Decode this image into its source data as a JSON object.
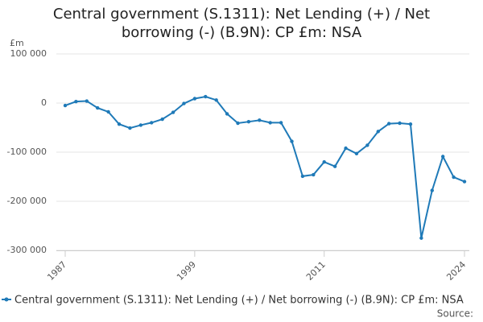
{
  "chart_data": {
    "type": "line",
    "title": "Central government (S.1311): Net Lending (+) / Net borrowing (-) (B.9N): CP £m: NSA",
    "ylabel": "£m",
    "source": "Source:",
    "x": [
      1987,
      1988,
      1989,
      1990,
      1991,
      1992,
      1993,
      1994,
      1995,
      1996,
      1997,
      1998,
      1999,
      2000,
      2001,
      2002,
      2003,
      2004,
      2005,
      2006,
      2007,
      2008,
      2009,
      2010,
      2011,
      2012,
      2013,
      2014,
      2015,
      2016,
      2017,
      2018,
      2019,
      2020,
      2021,
      2022,
      2023,
      2024
    ],
    "series": [
      {
        "name": "Central government (S.1311): Net Lending (+) / Net borrowing (-) (B.9N): CP £m: NSA",
        "color": "#1f7ab8",
        "values": [
          -5000,
          3000,
          4000,
          -10000,
          -18000,
          -43000,
          -51000,
          -45000,
          -40000,
          -33000,
          -19000,
          -1000,
          9000,
          13000,
          6000,
          -22000,
          -41000,
          -38000,
          -35000,
          -40000,
          -40000,
          -78000,
          -149000,
          -146000,
          -120000,
          -129000,
          -92000,
          -103000,
          -86000,
          -58000,
          -42000,
          -41000,
          -43000,
          -275000,
          -178000,
          -109000,
          -151000,
          -160000
        ]
      }
    ],
    "xlim": [
      1987,
      2024
    ],
    "xticks": [
      1987,
      1999,
      2011,
      2024
    ],
    "ylim": [
      -300000,
      100000
    ],
    "yticks": [
      {
        "value": -300000,
        "label": "-300 000"
      },
      {
        "value": -200000,
        "label": "-200 000"
      },
      {
        "value": -100000,
        "label": "-100 000"
      },
      0,
      {
        "value": 100000,
        "label": "100 000"
      }
    ],
    "grid": true
  }
}
